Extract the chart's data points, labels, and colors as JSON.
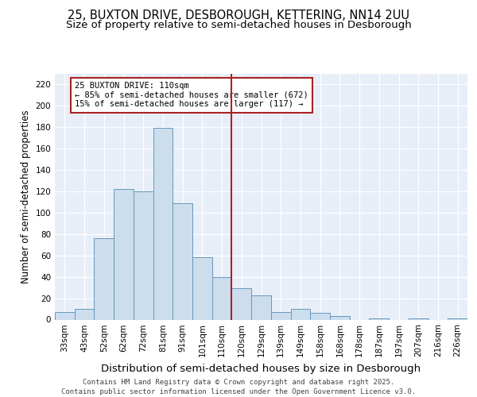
{
  "title_line1": "25, BUXTON DRIVE, DESBOROUGH, KETTERING, NN14 2UU",
  "title_line2": "Size of property relative to semi-detached houses in Desborough",
  "xlabel": "Distribution of semi-detached houses by size in Desborough",
  "ylabel": "Number of semi-detached properties",
  "categories": [
    "33sqm",
    "43sqm",
    "52sqm",
    "62sqm",
    "72sqm",
    "81sqm",
    "91sqm",
    "101sqm",
    "110sqm",
    "120sqm",
    "129sqm",
    "139sqm",
    "149sqm",
    "158sqm",
    "168sqm",
    "178sqm",
    "187sqm",
    "197sqm",
    "207sqm",
    "216sqm",
    "226sqm"
  ],
  "values": [
    7,
    10,
    76,
    122,
    120,
    179,
    109,
    58,
    40,
    29,
    23,
    7,
    10,
    6,
    3,
    0,
    1,
    0,
    1,
    0,
    1
  ],
  "bar_color": "#ccdded",
  "bar_edge_color": "#6699bb",
  "bg_color": "#e8eef8",
  "grid_color": "#ffffff",
  "vline_x_idx": 8,
  "vline_color": "#aa2222",
  "annotation_text": "25 BUXTON DRIVE: 110sqm\n← 85% of semi-detached houses are smaller (672)\n15% of semi-detached houses are larger (117) →",
  "annotation_box_facecolor": "#ffffff",
  "annotation_box_edgecolor": "#aa2222",
  "ylim": [
    0,
    230
  ],
  "yticks": [
    0,
    20,
    40,
    60,
    80,
    100,
    120,
    140,
    160,
    180,
    200,
    220
  ],
  "footer_line1": "Contains HM Land Registry data © Crown copyright and database right 2025.",
  "footer_line2": "Contains public sector information licensed under the Open Government Licence v3.0.",
  "title_fontsize": 10.5,
  "subtitle_fontsize": 9.5,
  "ylabel_fontsize": 8.5,
  "xlabel_fontsize": 9.5,
  "tick_fontsize": 7.5,
  "annotation_fontsize": 7.5,
  "footer_fontsize": 6.5
}
